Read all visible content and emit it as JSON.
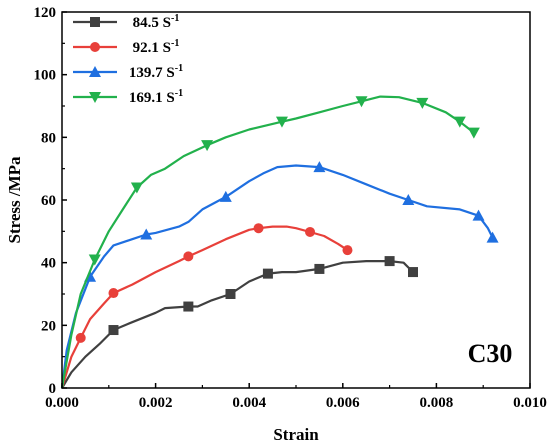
{
  "chart_data": {
    "type": "line",
    "title": "",
    "xlabel": "Strain",
    "ylabel": "Stress /MPa",
    "xlim": [
      0,
      0.01
    ],
    "ylim": [
      0,
      120
    ],
    "xticks": [
      "0.000",
      "0.002",
      "0.004",
      "0.006",
      "0.008",
      "0.010"
    ],
    "yticks": [
      "0",
      "20",
      "40",
      "60",
      "80",
      "100",
      "120"
    ],
    "grid": false,
    "legend_position": "top-left",
    "annotation": "C30",
    "series": [
      {
        "name": "84.5 S",
        "superscript": "-1",
        "color": "#404040",
        "marker": "square",
        "points": [
          [
            0,
            0
          ],
          [
            0.0002,
            5
          ],
          [
            0.0005,
            10
          ],
          [
            0.0008,
            14
          ],
          [
            0.0011,
            18.5
          ],
          [
            0.0015,
            21
          ],
          [
            0.002,
            24
          ],
          [
            0.0022,
            25.5
          ],
          [
            0.0027,
            26
          ],
          [
            0.0029,
            26
          ],
          [
            0.0032,
            28
          ],
          [
            0.0036,
            30
          ],
          [
            0.004,
            34
          ],
          [
            0.0044,
            36.5
          ],
          [
            0.0047,
            37
          ],
          [
            0.005,
            37
          ],
          [
            0.0055,
            38
          ],
          [
            0.006,
            40
          ],
          [
            0.0065,
            40.5
          ],
          [
            0.007,
            40.5
          ],
          [
            0.0073,
            40
          ],
          [
            0.0075,
            37
          ]
        ],
        "markers": [
          [
            0.0011,
            18.5
          ],
          [
            0.0027,
            26
          ],
          [
            0.0036,
            30
          ],
          [
            0.0044,
            36.5
          ],
          [
            0.0055,
            38
          ],
          [
            0.007,
            40.5
          ],
          [
            0.0075,
            37
          ]
        ]
      },
      {
        "name": "92.1 S",
        "superscript": "-1",
        "color": "#e8403a",
        "marker": "circle",
        "points": [
          [
            0,
            0
          ],
          [
            0.0002,
            10
          ],
          [
            0.0004,
            16
          ],
          [
            0.0006,
            22
          ],
          [
            0.0009,
            27
          ],
          [
            0.0011,
            30.3
          ],
          [
            0.0015,
            33
          ],
          [
            0.002,
            37
          ],
          [
            0.0025,
            40.5
          ],
          [
            0.0027,
            42
          ],
          [
            0.003,
            44
          ],
          [
            0.0035,
            47.5
          ],
          [
            0.004,
            50.5
          ],
          [
            0.0042,
            51
          ],
          [
            0.0045,
            51.5
          ],
          [
            0.0048,
            51.5
          ],
          [
            0.005,
            51
          ],
          [
            0.0053,
            49.8
          ],
          [
            0.0056,
            48.5
          ],
          [
            0.0059,
            46
          ],
          [
            0.0061,
            44
          ]
        ],
        "markers": [
          [
            0.0004,
            16
          ],
          [
            0.0011,
            30.3
          ],
          [
            0.0027,
            42
          ],
          [
            0.0042,
            51
          ],
          [
            0.0053,
            49.8
          ],
          [
            0.0061,
            44
          ]
        ]
      },
      {
        "name": "139.7 S",
        "superscript": "-1",
        "color": "#1f6fe0",
        "marker": "triangle-up",
        "points": [
          [
            0,
            0
          ],
          [
            0.0001,
            12
          ],
          [
            0.0003,
            24
          ],
          [
            0.0006,
            35.5
          ],
          [
            0.0009,
            42
          ],
          [
            0.0011,
            45.5
          ],
          [
            0.0015,
            47.5
          ],
          [
            0.0018,
            49
          ],
          [
            0.002,
            49.5
          ],
          [
            0.0025,
            51.5
          ],
          [
            0.0027,
            53
          ],
          [
            0.003,
            57
          ],
          [
            0.0035,
            61
          ],
          [
            0.004,
            66
          ],
          [
            0.0043,
            68.5
          ],
          [
            0.0046,
            70.5
          ],
          [
            0.005,
            71
          ],
          [
            0.0055,
            70.5
          ],
          [
            0.006,
            68
          ],
          [
            0.0065,
            65
          ],
          [
            0.007,
            62
          ],
          [
            0.0074,
            60
          ],
          [
            0.0078,
            58
          ],
          [
            0.0085,
            57
          ],
          [
            0.0089,
            55
          ],
          [
            0.0091,
            51
          ],
          [
            0.0092,
            48
          ]
        ],
        "markers": [
          [
            0.0006,
            35.5
          ],
          [
            0.0018,
            49
          ],
          [
            0.0035,
            61
          ],
          [
            0.0055,
            70.5
          ],
          [
            0.0074,
            60
          ],
          [
            0.0089,
            55
          ],
          [
            0.0092,
            48
          ]
        ]
      },
      {
        "name": "169.1 S",
        "superscript": "-1",
        "color": "#22b14c",
        "marker": "triangle-down",
        "points": [
          [
            0,
            0
          ],
          [
            0.0002,
            17
          ],
          [
            0.0004,
            30
          ],
          [
            0.0007,
            41
          ],
          [
            0.001,
            50
          ],
          [
            0.0013,
            57
          ],
          [
            0.0016,
            64
          ],
          [
            0.0019,
            68
          ],
          [
            0.0022,
            70
          ],
          [
            0.0026,
            74
          ],
          [
            0.0031,
            77.5
          ],
          [
            0.0035,
            80
          ],
          [
            0.004,
            82.5
          ],
          [
            0.0047,
            85
          ],
          [
            0.005,
            86
          ],
          [
            0.0055,
            88
          ],
          [
            0.006,
            90
          ],
          [
            0.0064,
            91.5
          ],
          [
            0.0068,
            93
          ],
          [
            0.0072,
            92.8
          ],
          [
            0.0077,
            91
          ],
          [
            0.0082,
            88
          ],
          [
            0.0085,
            85
          ],
          [
            0.0088,
            81.5
          ]
        ],
        "markers": [
          [
            0.0007,
            41
          ],
          [
            0.0016,
            64
          ],
          [
            0.0031,
            77.5
          ],
          [
            0.0047,
            85
          ],
          [
            0.0064,
            91.5
          ],
          [
            0.0077,
            91
          ],
          [
            0.0085,
            85
          ],
          [
            0.0088,
            81.5
          ]
        ]
      }
    ]
  }
}
